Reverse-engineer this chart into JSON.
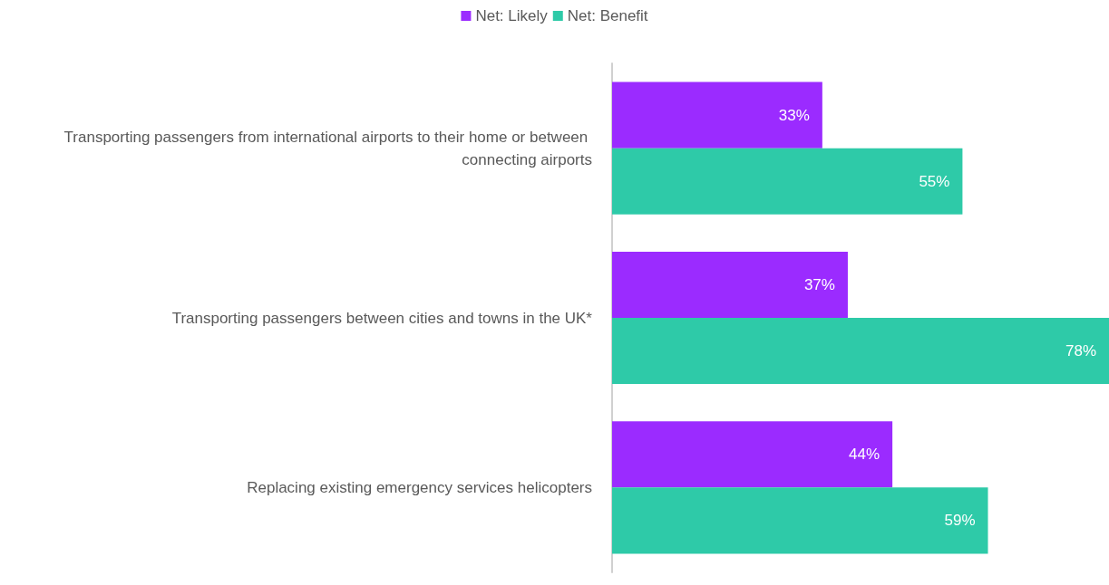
{
  "chart_data": {
    "type": "bar",
    "orientation": "horizontal",
    "categories": [
      "Transporting passengers from international airports to their home or between connecting airports",
      "Transporting passengers between cities and towns in the UK*",
      "Replacing existing emergency services helicopters"
    ],
    "series": [
      {
        "name": "Net: Likely",
        "color": "#9b2bff",
        "values": [
          33,
          37,
          44
        ],
        "value_labels": [
          "33%",
          "37%",
          "44%"
        ]
      },
      {
        "name": "Net: Benefit",
        "color": "#2ecaa8",
        "values": [
          55,
          78,
          59
        ],
        "value_labels": [
          "55%",
          "78%",
          "59%"
        ]
      }
    ],
    "xlim": [
      0,
      78
    ],
    "legend": "top",
    "tick_labels": "y"
  }
}
